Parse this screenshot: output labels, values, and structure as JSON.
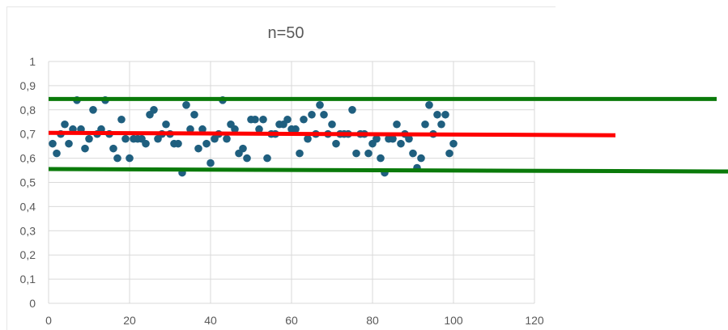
{
  "chart_data": {
    "type": "scatter",
    "title": "n=50",
    "xlabel": "",
    "ylabel": "",
    "xlim": [
      0,
      120
    ],
    "ylim": [
      0,
      1
    ],
    "x_ticks": [
      "0",
      "20",
      "40",
      "60",
      "80",
      "100",
      "120"
    ],
    "y_ticks": [
      "0",
      "0,1",
      "0,2",
      "0,3",
      "0,4",
      "0,5",
      "0,6",
      "0,7",
      "0,8",
      "0,9",
      "1"
    ],
    "grid": true,
    "legend": "none",
    "series": [
      {
        "color": "#1f5f7f",
        "points": [
          [
            1,
            0.66
          ],
          [
            2,
            0.62
          ],
          [
            3,
            0.7
          ],
          [
            4,
            0.74
          ],
          [
            5,
            0.66
          ],
          [
            6,
            0.72
          ],
          [
            7,
            0.84
          ],
          [
            8,
            0.72
          ],
          [
            9,
            0.64
          ],
          [
            10,
            0.68
          ],
          [
            11,
            0.8
          ],
          [
            12,
            0.7
          ],
          [
            13,
            0.72
          ],
          [
            14,
            0.84
          ],
          [
            15,
            0.7
          ],
          [
            16,
            0.64
          ],
          [
            17,
            0.6
          ],
          [
            18,
            0.76
          ],
          [
            19,
            0.68
          ],
          [
            20,
            0.6
          ],
          [
            21,
            0.68
          ],
          [
            22,
            0.68
          ],
          [
            23,
            0.68
          ],
          [
            24,
            0.66
          ],
          [
            25,
            0.78
          ],
          [
            26,
            0.8
          ],
          [
            27,
            0.68
          ],
          [
            28,
            0.7
          ],
          [
            29,
            0.74
          ],
          [
            30,
            0.7
          ],
          [
            31,
            0.66
          ],
          [
            32,
            0.66
          ],
          [
            33,
            0.54
          ],
          [
            34,
            0.82
          ],
          [
            35,
            0.72
          ],
          [
            36,
            0.78
          ],
          [
            37,
            0.64
          ],
          [
            38,
            0.72
          ],
          [
            39,
            0.66
          ],
          [
            40,
            0.58
          ],
          [
            41,
            0.68
          ],
          [
            42,
            0.7
          ],
          [
            43,
            0.84
          ],
          [
            44,
            0.68
          ],
          [
            45,
            0.74
          ],
          [
            46,
            0.72
          ],
          [
            47,
            0.62
          ],
          [
            48,
            0.64
          ],
          [
            49,
            0.6
          ],
          [
            50,
            0.76
          ],
          [
            51,
            0.76
          ],
          [
            52,
            0.72
          ],
          [
            53,
            0.76
          ],
          [
            54,
            0.6
          ],
          [
            55,
            0.7
          ],
          [
            56,
            0.7
          ],
          [
            57,
            0.74
          ],
          [
            58,
            0.74
          ],
          [
            59,
            0.76
          ],
          [
            60,
            0.72
          ],
          [
            61,
            0.72
          ],
          [
            62,
            0.62
          ],
          [
            63,
            0.76
          ],
          [
            64,
            0.68
          ],
          [
            65,
            0.78
          ],
          [
            66,
            0.7
          ],
          [
            67,
            0.82
          ],
          [
            68,
            0.78
          ],
          [
            69,
            0.7
          ],
          [
            70,
            0.74
          ],
          [
            71,
            0.66
          ],
          [
            72,
            0.7
          ],
          [
            73,
            0.7
          ],
          [
            74,
            0.7
          ],
          [
            75,
            0.8
          ],
          [
            76,
            0.62
          ],
          [
            77,
            0.7
          ],
          [
            78,
            0.7
          ],
          [
            79,
            0.62
          ],
          [
            80,
            0.66
          ],
          [
            81,
            0.68
          ],
          [
            82,
            0.6
          ],
          [
            83,
            0.54
          ],
          [
            84,
            0.68
          ],
          [
            85,
            0.68
          ],
          [
            86,
            0.74
          ],
          [
            87,
            0.66
          ],
          [
            88,
            0.7
          ],
          [
            89,
            0.68
          ],
          [
            90,
            0.62
          ],
          [
            91,
            0.56
          ],
          [
            92,
            0.6
          ],
          [
            93,
            0.74
          ],
          [
            94,
            0.82
          ],
          [
            95,
            0.7
          ],
          [
            96,
            0.78
          ],
          [
            97,
            0.74
          ],
          [
            98,
            0.78
          ],
          [
            99,
            0.62
          ],
          [
            100,
            0.66
          ]
        ]
      }
    ],
    "overlay_lines": [
      {
        "color": "#ff0000",
        "x": [
          0,
          140
        ],
        "y": [
          0.705,
          0.695
        ]
      },
      {
        "color": "#0a7a0a",
        "x": [
          0,
          165
        ],
        "y": [
          0.845,
          0.845
        ]
      },
      {
        "color": "#0a7a0a",
        "x": [
          0,
          168
        ],
        "y": [
          0.555,
          0.545
        ]
      }
    ]
  }
}
